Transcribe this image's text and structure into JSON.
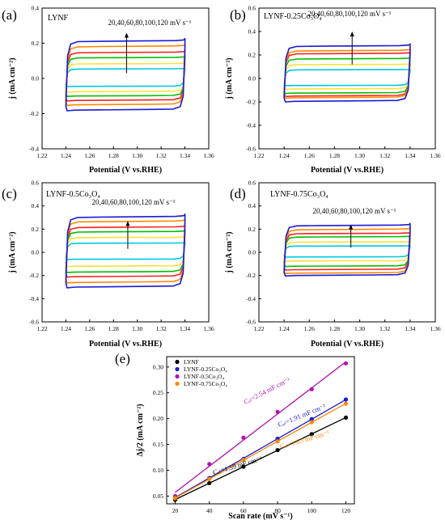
{
  "chart_data": [
    {
      "type": "line",
      "panel_label": "(a)",
      "material": "LYNF",
      "annotation": "20,40,60,80,100,120 mV s⁻¹",
      "xlabel": "Potential (V vs.RHE)",
      "ylabel": "j (mA cm⁻²)",
      "xlim": [
        1.22,
        1.36
      ],
      "ylim": [
        -0.4,
        0.4
      ],
      "xticks": [
        "1.22",
        "1.24",
        "1.26",
        "1.28",
        "1.30",
        "1.32",
        "1.34",
        "1.36"
      ],
      "yticks": [
        "-0.4",
        "-0.2",
        "0.0",
        "0.2",
        "0.4"
      ],
      "x_range": [
        1.24,
        1.34
      ],
      "series": [
        {
          "scan_rate": 20,
          "color": "#00c8e0",
          "upper": 0.055,
          "lower": -0.045
        },
        {
          "scan_rate": 40,
          "color": "#ffe135",
          "upper": 0.085,
          "lower": -0.075
        },
        {
          "scan_rate": 60,
          "color": "#00c000",
          "upper": 0.12,
          "lower": -0.1
        },
        {
          "scan_rate": 80,
          "color": "#ff2020",
          "upper": 0.15,
          "lower": -0.125
        },
        {
          "scan_rate": 100,
          "color": "#ff8800",
          "upper": 0.185,
          "lower": -0.15
        },
        {
          "scan_rate": 120,
          "color": "#1a1ad8",
          "upper": 0.215,
          "lower": -0.18
        }
      ]
    },
    {
      "type": "line",
      "panel_label": "(b)",
      "material": "LYNF-0.25Co₃O₄",
      "annotation": "20,40,60,80,100,120 mV s⁻¹",
      "xlabel": "Potential (V vs.RHE)",
      "ylabel": "j (mA cm⁻²)",
      "xlim": [
        1.22,
        1.36
      ],
      "ylim": [
        -0.6,
        0.6
      ],
      "xticks": [
        "1.22",
        "1.24",
        "1.26",
        "1.28",
        "1.30",
        "1.32",
        "1.34",
        "1.36"
      ],
      "yticks": [
        "-0.6",
        "-0.4",
        "-0.2",
        "0.0",
        "0.2",
        "0.4",
        "0.6"
      ],
      "x_range": [
        1.24,
        1.34
      ],
      "series": [
        {
          "scan_rate": 20,
          "color": "#00c8e0",
          "upper": 0.075,
          "lower": -0.06
        },
        {
          "scan_rate": 40,
          "color": "#ffe135",
          "upper": 0.12,
          "lower": -0.09
        },
        {
          "scan_rate": 60,
          "color": "#00c000",
          "upper": 0.17,
          "lower": -0.125
        },
        {
          "scan_rate": 80,
          "color": "#ff2020",
          "upper": 0.215,
          "lower": -0.15
        },
        {
          "scan_rate": 100,
          "color": "#ff8800",
          "upper": 0.24,
          "lower": -0.165
        },
        {
          "scan_rate": 120,
          "color": "#1a1ad8",
          "upper": 0.28,
          "lower": -0.195
        }
      ]
    },
    {
      "type": "line",
      "panel_label": "(c)",
      "material": "LYNF-0.5Co₃O₄",
      "annotation": "20,40,60,80,100,120 mV s⁻¹",
      "xlabel": "Potential (V vs.RHE)",
      "ylabel": "j (mA cm⁻²)",
      "xlim": [
        1.22,
        1.36
      ],
      "ylim": [
        -0.6,
        0.6
      ],
      "xticks": [
        "1.22",
        "1.24",
        "1.26",
        "1.28",
        "1.30",
        "1.32",
        "1.34",
        "1.36"
      ],
      "yticks": [
        "-0.6",
        "-0.4",
        "-0.2",
        "0.0",
        "0.2",
        "0.4",
        "0.6"
      ],
      "x_range": [
        1.24,
        1.34
      ],
      "series": [
        {
          "scan_rate": 20,
          "color": "#00c8e0",
          "upper": 0.08,
          "lower": -0.06
        },
        {
          "scan_rate": 40,
          "color": "#ffe135",
          "upper": 0.13,
          "lower": -0.12
        },
        {
          "scan_rate": 60,
          "color": "#00c000",
          "upper": 0.18,
          "lower": -0.17
        },
        {
          "scan_rate": 80,
          "color": "#ff2020",
          "upper": 0.22,
          "lower": -0.21
        },
        {
          "scan_rate": 100,
          "color": "#ff8800",
          "upper": 0.27,
          "lower": -0.26
        },
        {
          "scan_rate": 120,
          "color": "#1a1ad8",
          "upper": 0.31,
          "lower": -0.3
        }
      ]
    },
    {
      "type": "line",
      "panel_label": "(d)",
      "material": "LYNF-0.75Co₃O₄",
      "annotation": "20,40,60,80,100,120 mV s⁻¹",
      "xlabel": "Potential (V vs.RHE)",
      "ylabel": "j (mA cm⁻²)",
      "xlim": [
        1.22,
        1.36
      ],
      "ylim": [
        -0.6,
        0.6
      ],
      "xticks": [
        "1.22",
        "1.24",
        "1.26",
        "1.28",
        "1.30",
        "1.32",
        "1.34",
        "1.36"
      ],
      "yticks": [
        "-0.6",
        "-0.4",
        "-0.2",
        "0.0",
        "0.2",
        "0.4",
        "0.6"
      ],
      "x_range": [
        1.24,
        1.34
      ],
      "series": [
        {
          "scan_rate": 20,
          "color": "#00c8e0",
          "upper": 0.055,
          "lower": -0.04
        },
        {
          "scan_rate": 40,
          "color": "#ffe135",
          "upper": 0.09,
          "lower": -0.075
        },
        {
          "scan_rate": 60,
          "color": "#00c000",
          "upper": 0.135,
          "lower": -0.12
        },
        {
          "scan_rate": 80,
          "color": "#ff2020",
          "upper": 0.165,
          "lower": -0.15
        },
        {
          "scan_rate": 100,
          "color": "#ff8800",
          "upper": 0.2,
          "lower": -0.18
        },
        {
          "scan_rate": 120,
          "color": "#1a1ad8",
          "upper": 0.235,
          "lower": -0.2
        }
      ]
    },
    {
      "type": "scatter",
      "panel_label": "(e)",
      "xlabel": "Scan rate (mV s⁻¹)",
      "ylabel": "Δj/2 (mA cm⁻²)",
      "xlim": [
        15,
        125
      ],
      "ylim": [
        0.035,
        0.32
      ],
      "xticks": [
        "20",
        "40",
        "60",
        "80",
        "100",
        "120"
      ],
      "yticks": [
        "0.05",
        "0.10",
        "0.15",
        "0.20",
        "0.25",
        "0.30"
      ],
      "x": [
        20,
        40,
        60,
        80,
        100,
        120
      ],
      "series": [
        {
          "name": "LYNF",
          "color": "#000000",
          "values": [
            0.043,
            0.075,
            0.107,
            0.139,
            0.17,
            0.202
          ],
          "label": "Cₑₗ=1.59 mF cm⁻²"
        },
        {
          "name": "LYNF-0.25Co₃O₄",
          "color": "#1a1ad8",
          "values": [
            0.048,
            0.085,
            0.122,
            0.161,
            0.199,
            0.237
          ],
          "label": "Cₑₗ=1.91 mF cm⁻²"
        },
        {
          "name": "LYNF-0.5Co₃O₄",
          "color": "#b015b0",
          "values": [
            0.05,
            0.112,
            0.163,
            0.213,
            0.257,
            0.307
          ],
          "label": "Cₑₗ=2.54 mF cm⁻²"
        },
        {
          "name": "LYNF-0.75Co₃O₄",
          "color": "#ff8800",
          "values": [
            0.046,
            0.083,
            0.12,
            0.156,
            0.193,
            0.229
          ],
          "label": "Cₑₗ=1.83 mF cm⁻²"
        }
      ]
    }
  ]
}
